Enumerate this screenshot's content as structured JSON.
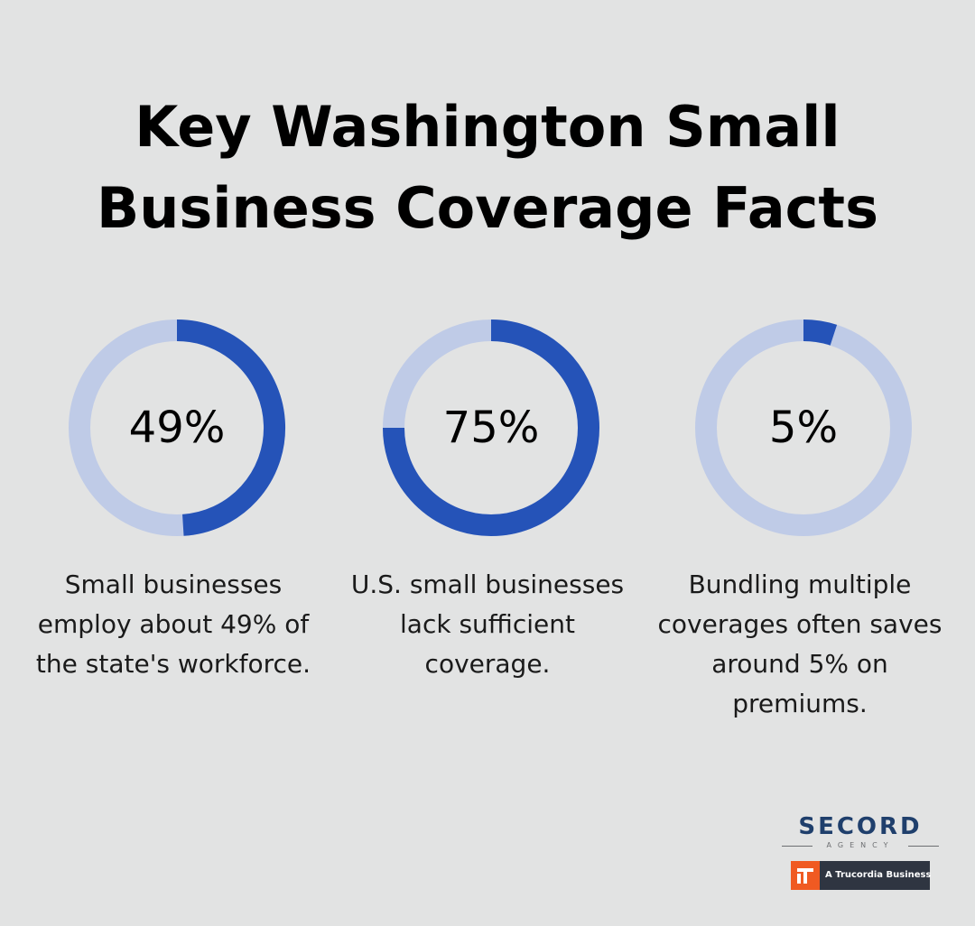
{
  "title": {
    "line1": "Key Washington Small",
    "line2": "Business Coverage Facts"
  },
  "chart_data": [
    {
      "type": "pie",
      "value": 49,
      "label": "49%",
      "caption": "Small businesses employ about 49% of the state's workforce."
    },
    {
      "type": "pie",
      "value": 75,
      "label": "75%",
      "caption": "U.S. small businesses lack sufficient coverage."
    },
    {
      "type": "pie",
      "value": 5,
      "label": "5%",
      "caption": "Bundling multiple coverages often saves around 5% on premiums."
    }
  ],
  "colors": {
    "background": "#e2e3e3",
    "ring_fill": "#2553b8",
    "ring_track": "#bfcbe7"
  },
  "logo": {
    "name": "SECORD",
    "sub": "AGENCY",
    "badge_text": "A Trucordia Business"
  }
}
